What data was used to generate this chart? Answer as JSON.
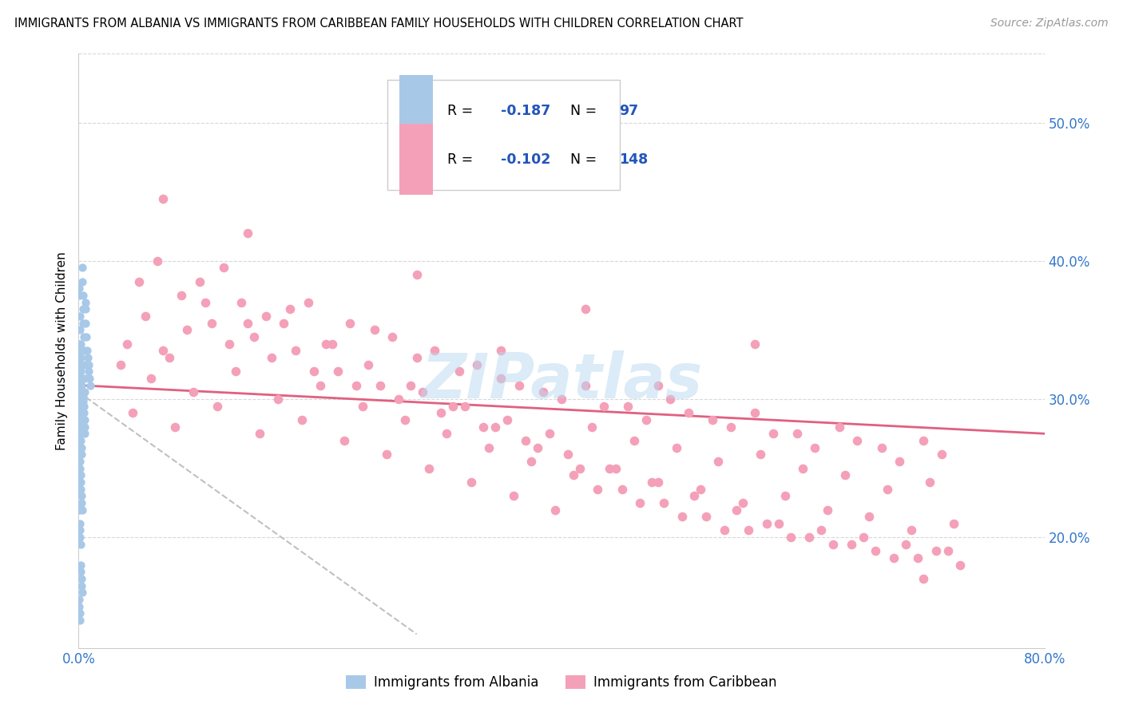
{
  "title": "IMMIGRANTS FROM ALBANIA VS IMMIGRANTS FROM CARIBBEAN FAMILY HOUSEHOLDS WITH CHILDREN CORRELATION CHART",
  "source": "Source: ZipAtlas.com",
  "ylabel": "Family Households with Children",
  "xlim": [
    0.0,
    80.0
  ],
  "ylim": [
    12.0,
    55.0
  ],
  "albania_R": -0.187,
  "albania_N": 97,
  "caribbean_R": -0.102,
  "caribbean_N": 148,
  "albania_color": "#a8c8e8",
  "caribbean_color": "#f4a0b8",
  "albania_line_color": "#c0c0c0",
  "caribbean_line_color": "#e06080",
  "watermark": "ZIPatlas",
  "watermark_color": "#b8d8f0",
  "legend_color": "#2255bb",
  "y_ticks": [
    20.0,
    30.0,
    40.0,
    50.0
  ],
  "albania_x": [
    0.05,
    0.08,
    0.1,
    0.12,
    0.15,
    0.18,
    0.2,
    0.22,
    0.25,
    0.28,
    0.3,
    0.32,
    0.35,
    0.38,
    0.4,
    0.42,
    0.45,
    0.48,
    0.5,
    0.52,
    0.55,
    0.58,
    0.6,
    0.65,
    0.7,
    0.75,
    0.8,
    0.85,
    0.9,
    0.95,
    0.05,
    0.08,
    0.1,
    0.12,
    0.15,
    0.18,
    0.2,
    0.22,
    0.25,
    0.28,
    0.3,
    0.32,
    0.35,
    0.38,
    0.4,
    0.42,
    0.45,
    0.48,
    0.5,
    0.52,
    0.05,
    0.08,
    0.1,
    0.12,
    0.15,
    0.18,
    0.2,
    0.22,
    0.25,
    0.28,
    0.05,
    0.08,
    0.1,
    0.12,
    0.15,
    0.18,
    0.2,
    0.22,
    0.25,
    0.28,
    0.05,
    0.07,
    0.09,
    0.11,
    0.13,
    0.15,
    0.17,
    0.19,
    0.21,
    0.23,
    0.05,
    0.07,
    0.09,
    0.11,
    0.13,
    0.15,
    0.17,
    0.19,
    0.21,
    0.23,
    0.05,
    0.07,
    0.09,
    0.11,
    0.13,
    0.15,
    0.17
  ],
  "albania_y": [
    30.2,
    29.8,
    30.5,
    29.5,
    30.8,
    30.1,
    29.9,
    30.3,
    30.0,
    30.6,
    29.7,
    30.4,
    30.2,
    30.0,
    29.8,
    29.5,
    29.0,
    28.5,
    28.0,
    27.5,
    37.0,
    36.5,
    35.5,
    34.5,
    33.5,
    33.0,
    32.5,
    32.0,
    31.5,
    31.0,
    38.0,
    37.5,
    36.0,
    35.0,
    34.0,
    33.0,
    32.0,
    31.5,
    31.0,
    30.5,
    39.5,
    38.5,
    37.5,
    36.5,
    35.5,
    34.5,
    33.5,
    32.5,
    31.5,
    30.5,
    22.0,
    21.0,
    20.5,
    20.0,
    19.5,
    18.0,
    17.5,
    17.0,
    16.5,
    16.0,
    26.5,
    26.0,
    25.5,
    25.0,
    24.5,
    24.0,
    23.5,
    23.0,
    22.5,
    22.0,
    15.5,
    15.0,
    14.5,
    14.0,
    28.5,
    28.0,
    27.5,
    27.0,
    26.5,
    26.0,
    32.5,
    32.0,
    31.5,
    31.0,
    30.5,
    30.0,
    29.5,
    29.0,
    28.5,
    28.0,
    34.0,
    33.5,
    33.0,
    32.5,
    32.0,
    31.5,
    31.0
  ],
  "caribbean_x": [
    3.5,
    7.0,
    10.5,
    14.0,
    17.5,
    21.0,
    24.5,
    28.0,
    31.5,
    35.0,
    38.5,
    42.0,
    45.5,
    49.0,
    52.5,
    56.0,
    59.5,
    63.0,
    66.5,
    70.0,
    5.0,
    8.5,
    12.0,
    15.5,
    19.0,
    22.5,
    26.0,
    29.5,
    33.0,
    36.5,
    40.0,
    43.5,
    47.0,
    50.5,
    54.0,
    57.5,
    61.0,
    64.5,
    68.0,
    71.5,
    4.0,
    7.5,
    11.0,
    14.5,
    18.0,
    21.5,
    25.0,
    28.5,
    32.0,
    35.5,
    39.0,
    42.5,
    46.0,
    49.5,
    53.0,
    56.5,
    60.0,
    63.5,
    67.0,
    70.5,
    6.0,
    9.5,
    13.0,
    16.5,
    20.0,
    23.5,
    27.0,
    30.5,
    34.0,
    37.5,
    41.0,
    44.5,
    48.0,
    51.5,
    55.0,
    58.5,
    62.0,
    65.5,
    69.0,
    72.5,
    4.5,
    8.0,
    11.5,
    15.0,
    18.5,
    22.0,
    25.5,
    29.0,
    32.5,
    36.0,
    39.5,
    43.0,
    46.5,
    50.0,
    53.5,
    57.0,
    60.5,
    64.0,
    67.5,
    71.0,
    5.5,
    9.0,
    12.5,
    16.0,
    19.5,
    23.0,
    26.5,
    30.0,
    33.5,
    37.0,
    40.5,
    44.0,
    47.5,
    51.0,
    54.5,
    58.0,
    61.5,
    65.0,
    68.5,
    72.0,
    6.5,
    10.0,
    13.5,
    17.0,
    20.5,
    24.0,
    27.5,
    31.0,
    34.5,
    38.0,
    41.5,
    45.0,
    48.5,
    52.0,
    55.5,
    59.0,
    62.5,
    66.0,
    69.5,
    73.0,
    7.0,
    14.0,
    28.0,
    42.0,
    56.0,
    70.0,
    35.0,
    48.0
  ],
  "caribbean_y": [
    32.5,
    33.5,
    37.0,
    35.5,
    36.5,
    34.0,
    35.0,
    33.0,
    32.0,
    31.5,
    30.5,
    31.0,
    29.5,
    30.0,
    28.5,
    29.0,
    27.5,
    28.0,
    26.5,
    27.0,
    38.5,
    37.5,
    39.5,
    36.0,
    37.0,
    35.5,
    34.5,
    33.5,
    32.5,
    31.0,
    30.0,
    29.5,
    28.5,
    29.0,
    28.0,
    27.5,
    26.5,
    27.0,
    25.5,
    26.0,
    34.0,
    33.0,
    35.5,
    34.5,
    33.5,
    32.0,
    31.0,
    30.5,
    29.5,
    28.5,
    27.5,
    28.0,
    27.0,
    26.5,
    25.5,
    26.0,
    25.0,
    24.5,
    23.5,
    24.0,
    31.5,
    30.5,
    32.0,
    30.0,
    31.0,
    29.5,
    28.5,
    27.5,
    26.5,
    25.5,
    24.5,
    25.0,
    24.0,
    23.5,
    22.5,
    23.0,
    22.0,
    21.5,
    20.5,
    21.0,
    29.0,
    28.0,
    29.5,
    27.5,
    28.5,
    27.0,
    26.0,
    25.0,
    24.0,
    23.0,
    22.0,
    23.5,
    22.5,
    21.5,
    20.5,
    21.0,
    20.0,
    19.5,
    18.5,
    19.0,
    36.0,
    35.0,
    34.0,
    33.0,
    32.0,
    31.0,
    30.0,
    29.0,
    28.0,
    27.0,
    26.0,
    25.0,
    24.0,
    23.0,
    22.0,
    21.0,
    20.5,
    20.0,
    19.5,
    19.0,
    40.0,
    38.5,
    37.0,
    35.5,
    34.0,
    32.5,
    31.0,
    29.5,
    28.0,
    26.5,
    25.0,
    23.5,
    22.5,
    21.5,
    20.5,
    20.0,
    19.5,
    19.0,
    18.5,
    18.0,
    44.5,
    42.0,
    39.0,
    36.5,
    34.0,
    17.0,
    33.5,
    31.0
  ]
}
